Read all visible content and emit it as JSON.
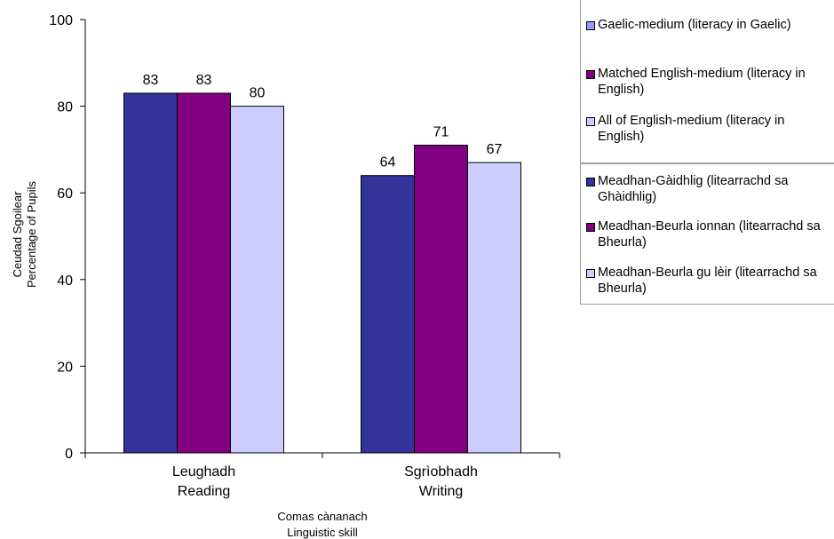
{
  "chart_data": {
    "type": "bar",
    "ylabel": [
      "Ceudad Sgoilear",
      "Percentage of Pupils"
    ],
    "xlabel": [
      "Comas cànanach",
      "Linguistic skill"
    ],
    "ylim": [
      0,
      100
    ],
    "yticks": [
      0,
      20,
      40,
      60,
      80,
      100
    ],
    "categories": [
      [
        "Leughadh",
        "Reading"
      ],
      [
        "Sgrìobhadh",
        "Writing"
      ]
    ],
    "series": [
      {
        "name": "Gaelic-medium (literacy in Gaelic)",
        "name_gd": "Meadhan-Gàidhlig (litearrachd sa Ghàidhlig)",
        "color": "#333399",
        "values": [
          83,
          64
        ]
      },
      {
        "name": "Matched English-medium (literacy in English)",
        "name_gd": "Meadhan-Beurla ionnan (litearrachd sa Bheurla)",
        "color": "#800080",
        "values": [
          83,
          71
        ]
      },
      {
        "name": "All of English-medium (literacy in English)",
        "name_gd": "Meadhan-Beurla gu lèir (litearrachd sa Bheurla)",
        "color": "#ccccff",
        "values": [
          80,
          67
        ]
      }
    ],
    "legend_placement": "right",
    "grid": false
  },
  "legend": {
    "english": [
      {
        "label": "Gaelic-medium (literacy in Gaelic)",
        "color": "#9999ff"
      },
      {
        "label": "Matched English-medium (literacy in English)",
        "color": "#800080"
      },
      {
        "label": "All of English-medium (literacy in English)",
        "color": "#ccccff"
      }
    ],
    "gaelic": [
      {
        "label": "Meadhan-Gàidhlig (litearrachd sa Ghàidhlig)",
        "color": "#333399"
      },
      {
        "label": "Meadhan-Beurla ionnan (litearrachd sa Bheurla)",
        "color": "#800080"
      },
      {
        "label": "Meadhan-Beurla gu lèir (litearrachd sa Bheurla)",
        "color": "#ccccff"
      }
    ]
  }
}
